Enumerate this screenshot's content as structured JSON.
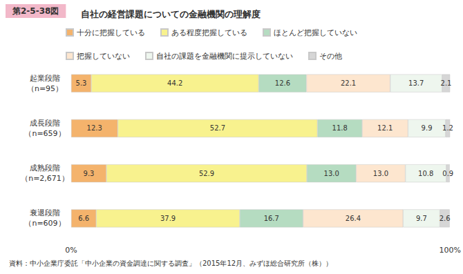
{
  "chart_data": {
    "type": "bar",
    "figure_number": "第2-5-38図",
    "title": "自社の経営課題についての金融機関の理解度",
    "source": "資料：中小企業庁委託「中小企業の資金調達に関する調査」（2015年12月、みずほ総合研究所（株））",
    "orientation": "horizontal",
    "stacked": true,
    "data_labels": true,
    "grid": false,
    "legend": "top",
    "categories": [
      "起業段階\n（n=95）",
      "成長段階\n（n=659）",
      "成熟段階\n（n=2,671）",
      "衰退段階\n（n=609）"
    ],
    "xlim": [
      0,
      100
    ],
    "xticks": [
      {
        "value": 0,
        "label": "0%"
      },
      {
        "value": 100,
        "label": "100%"
      }
    ],
    "series": [
      {
        "name": "十分に把握している",
        "color": "#f4b36c",
        "values": [
          5.3,
          12.3,
          9.3,
          6.6
        ],
        "value_labels": [
          "5.3",
          "12.3",
          "9.3",
          "6.6"
        ]
      },
      {
        "name": "ある程度把握している",
        "color": "#f8f28e",
        "values": [
          44.2,
          52.7,
          52.9,
          37.9
        ],
        "value_labels": [
          "44.2",
          "52.7",
          "52.9",
          "37.9"
        ]
      },
      {
        "name": "ほとんど把握していない",
        "color": "#b5dcc1",
        "values": [
          12.6,
          11.8,
          13.0,
          16.7
        ],
        "value_labels": [
          "12.6",
          "11.8",
          "13.0",
          "16.7"
        ]
      },
      {
        "name": "把握していない",
        "color": "#fde6cf",
        "values": [
          22.1,
          12.1,
          13.0,
          26.4
        ],
        "value_labels": [
          "22.1",
          "12.1",
          "13.0",
          "26.4"
        ]
      },
      {
        "name": "自社の課題を金融機関に提示していない",
        "color": "#eef6ee",
        "values": [
          13.7,
          9.9,
          10.8,
          9.7
        ],
        "value_labels": [
          "13.7",
          "9.9",
          "10.8",
          "9.7"
        ]
      },
      {
        "name": "その他",
        "color": "#d6d6d6",
        "values": [
          2.1,
          1.2,
          0.9,
          2.6
        ],
        "value_labels": [
          "2.1",
          "1.2",
          "0.9",
          "2.6"
        ]
      }
    ]
  }
}
